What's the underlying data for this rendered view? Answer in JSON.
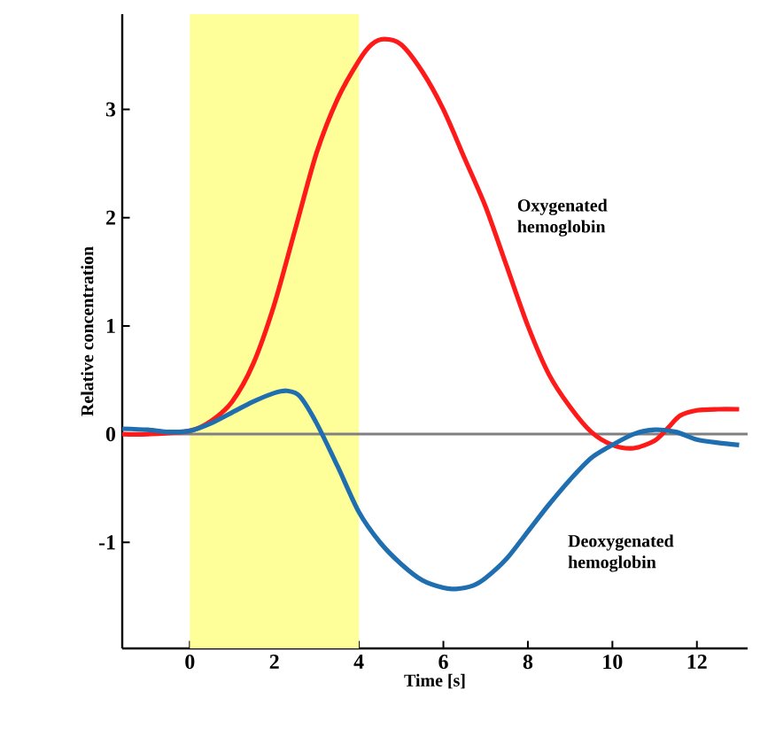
{
  "chart_data": {
    "type": "line",
    "xlabel": "Time [s]",
    "ylabel": "Relative concentration",
    "xlim": [
      -1.6,
      13.2
    ],
    "ylim": [
      -1.98,
      3.88
    ],
    "xticks": [
      0,
      2,
      4,
      6,
      8,
      10,
      12
    ],
    "yticks": [
      -1,
      0,
      1,
      2,
      3
    ],
    "grid": false,
    "marker": "none",
    "line_style": "solid",
    "ref_lines": [
      {
        "axis": "y",
        "value": 0,
        "label": null,
        "color": "#808080"
      }
    ],
    "bands": [
      {
        "axis": "x",
        "from": 0,
        "to": 4,
        "label": null,
        "color": "#ffff99"
      }
    ],
    "series": [
      {
        "name": "Oxygenated hemoglobin",
        "color": "#ff1a1a",
        "x": [
          -1.6,
          -1,
          0,
          0.5,
          1,
          1.5,
          2,
          2.5,
          3,
          3.5,
          4,
          4.3,
          4.6,
          5,
          5.5,
          6,
          6.5,
          7,
          7.5,
          8,
          8.5,
          9,
          9.5,
          10,
          10.5,
          11,
          11.3,
          11.6,
          12,
          12.5,
          13
        ],
        "values": [
          0.0,
          0.0,
          0.03,
          0.12,
          0.3,
          0.65,
          1.2,
          1.9,
          2.6,
          3.1,
          3.45,
          3.6,
          3.65,
          3.6,
          3.35,
          3.0,
          2.55,
          2.1,
          1.55,
          1.0,
          0.55,
          0.25,
          0.02,
          -0.1,
          -0.13,
          -0.06,
          0.05,
          0.17,
          0.22,
          0.23,
          0.23
        ]
      },
      {
        "name": "Deoxygenated hemoglobin",
        "color": "#1f6fb0",
        "x": [
          -1.6,
          -1,
          -0.5,
          0,
          0.5,
          1,
          1.5,
          2,
          2.3,
          2.6,
          3,
          3.5,
          4,
          4.5,
          5,
          5.5,
          6,
          6.3,
          6.7,
          7,
          7.5,
          8,
          8.5,
          9,
          9.5,
          10,
          10.5,
          11,
          11.5,
          12,
          12.5,
          13
        ],
        "values": [
          0.05,
          0.04,
          0.02,
          0.03,
          0.1,
          0.2,
          0.3,
          0.38,
          0.4,
          0.35,
          0.1,
          -0.3,
          -0.72,
          -1.0,
          -1.2,
          -1.35,
          -1.42,
          -1.43,
          -1.4,
          -1.33,
          -1.15,
          -0.9,
          -0.65,
          -0.42,
          -0.22,
          -0.1,
          0.0,
          0.04,
          0.02,
          -0.05,
          -0.08,
          -0.1
        ]
      }
    ]
  }
}
